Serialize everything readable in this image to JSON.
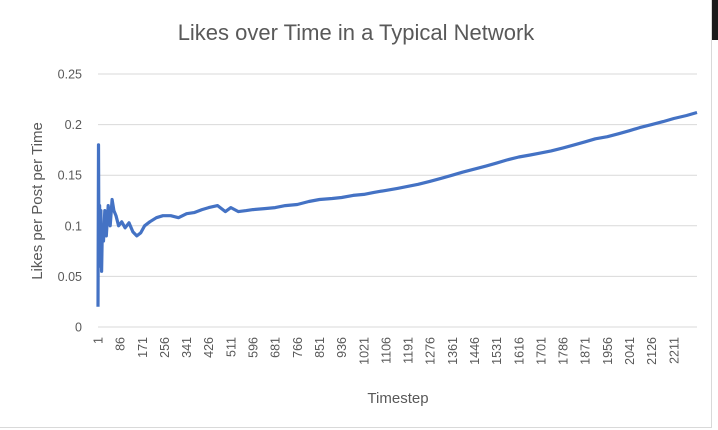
{
  "chart_data": {
    "type": "line",
    "title": "Likes over Time in a Typical Network",
    "xlabel": "Timestep",
    "ylabel": "Likes per Post per Time",
    "ylim": [
      0,
      0.25
    ],
    "yticks": [
      "0",
      "0.05",
      "0.1",
      "0.15",
      "0.2",
      "0.25"
    ],
    "xticks": [
      "1",
      "86",
      "171",
      "256",
      "341",
      "426",
      "511",
      "596",
      "681",
      "766",
      "851",
      "936",
      "1021",
      "1106",
      "1191",
      "1276",
      "1361",
      "1446",
      "1531",
      "1616",
      "1701",
      "1786",
      "1871",
      "1956",
      "2041",
      "2126",
      "2211"
    ],
    "xrange": [
      1,
      2300
    ],
    "grid": true,
    "legend": "none",
    "series": [
      {
        "color": "#4472c4",
        "x": [
          1,
          3,
          5,
          7,
          9,
          12,
          15,
          18,
          22,
          27,
          33,
          40,
          48,
          55,
          62,
          70,
          80,
          92,
          105,
          120,
          135,
          150,
          165,
          180,
          200,
          225,
          250,
          280,
          310,
          341,
          370,
          400,
          426,
          460,
          490,
          511,
          540,
          570,
          596,
          640,
          681,
          720,
          766,
          810,
          851,
          900,
          936,
          980,
          1021,
          1060,
          1106,
          1150,
          1191,
          1230,
          1276,
          1320,
          1361,
          1400,
          1446,
          1490,
          1531,
          1570,
          1616,
          1660,
          1701,
          1740,
          1786,
          1830,
          1871,
          1910,
          1956,
          2000,
          2041,
          2080,
          2126,
          2170,
          2211,
          2260,
          2300
        ],
        "y": [
          0.02,
          0.18,
          0.06,
          0.12,
          0.09,
          0.115,
          0.055,
          0.1,
          0.085,
          0.115,
          0.09,
          0.12,
          0.1,
          0.126,
          0.115,
          0.11,
          0.1,
          0.104,
          0.098,
          0.103,
          0.094,
          0.09,
          0.093,
          0.1,
          0.104,
          0.108,
          0.11,
          0.11,
          0.108,
          0.112,
          0.113,
          0.116,
          0.118,
          0.12,
          0.114,
          0.118,
          0.114,
          0.115,
          0.116,
          0.117,
          0.118,
          0.12,
          0.121,
          0.124,
          0.126,
          0.127,
          0.128,
          0.13,
          0.131,
          0.133,
          0.135,
          0.137,
          0.139,
          0.141,
          0.144,
          0.147,
          0.15,
          0.153,
          0.156,
          0.159,
          0.162,
          0.165,
          0.168,
          0.17,
          0.172,
          0.174,
          0.177,
          0.18,
          0.183,
          0.186,
          0.188,
          0.191,
          0.194,
          0.197,
          0.2,
          0.203,
          0.206,
          0.209,
          0.212
        ]
      }
    ]
  }
}
